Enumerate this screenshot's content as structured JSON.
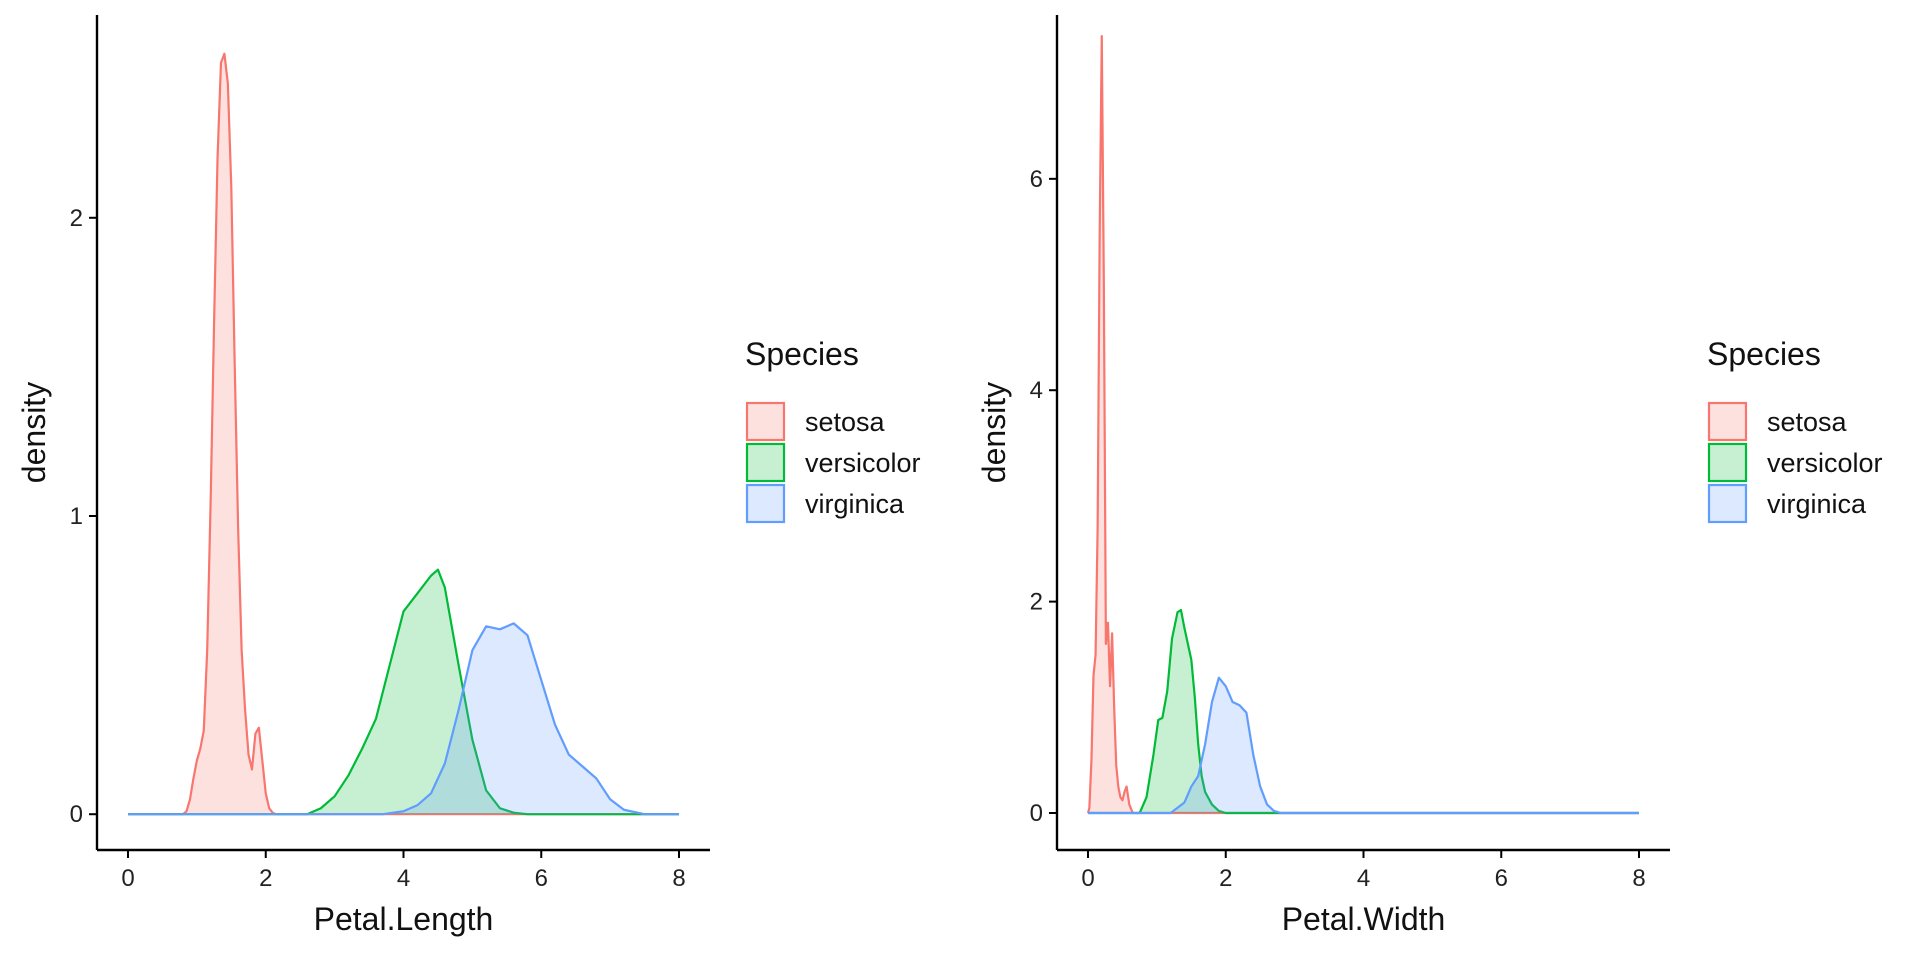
{
  "colors": {
    "setosa": "#F8766D",
    "versicolor": "#00BA38",
    "virginica": "#619CFF"
  },
  "chart_data": [
    {
      "type": "area",
      "xlabel": "Petal.Length",
      "ylabel": "density",
      "xlim": [
        -0.45,
        8.45
      ],
      "ylim": [
        -0.12,
        2.68
      ],
      "xticks": [
        0,
        2,
        4,
        6,
        8
      ],
      "xtick_labels": [
        "0",
        "2",
        "4",
        "6",
        "8"
      ],
      "yticks": [
        0,
        1,
        2
      ],
      "ytick_labels": [
        "0",
        "1",
        "2"
      ],
      "grid": false,
      "legend": {
        "title": "Species",
        "position": "right",
        "entries": [
          "setosa",
          "versicolor",
          "virginica"
        ]
      },
      "series": [
        {
          "name": "setosa",
          "color_key": "setosa",
          "x": [
            0,
            0.8,
            0.85,
            0.9,
            0.95,
            1.0,
            1.05,
            1.1,
            1.15,
            1.2,
            1.25,
            1.3,
            1.35,
            1.4,
            1.45,
            1.5,
            1.55,
            1.6,
            1.65,
            1.7,
            1.75,
            1.8,
            1.85,
            1.9,
            1.95,
            2.0,
            2.05,
            2.1,
            2.15,
            8
          ],
          "y": [
            0,
            0,
            0.01,
            0.05,
            0.12,
            0.18,
            0.22,
            0.28,
            0.55,
            1.05,
            1.65,
            2.2,
            2.52,
            2.55,
            2.45,
            2.1,
            1.5,
            0.95,
            0.55,
            0.35,
            0.2,
            0.15,
            0.27,
            0.29,
            0.18,
            0.07,
            0.02,
            0.005,
            0,
            0
          ]
        },
        {
          "name": "versicolor",
          "color_key": "versicolor",
          "x": [
            0,
            2.6,
            2.8,
            3.0,
            3.2,
            3.4,
            3.6,
            3.8,
            4.0,
            4.2,
            4.4,
            4.5,
            4.6,
            4.8,
            5.0,
            5.2,
            5.4,
            5.6,
            5.8,
            8
          ],
          "y": [
            0,
            0,
            0.02,
            0.06,
            0.13,
            0.22,
            0.32,
            0.5,
            0.68,
            0.74,
            0.8,
            0.82,
            0.76,
            0.5,
            0.25,
            0.08,
            0.02,
            0.005,
            0,
            0
          ]
        },
        {
          "name": "virginica",
          "color_key": "virginica",
          "x": [
            0,
            3.7,
            4.0,
            4.2,
            4.4,
            4.6,
            4.8,
            5.0,
            5.2,
            5.4,
            5.6,
            5.8,
            6.0,
            6.2,
            6.4,
            6.6,
            6.8,
            7.0,
            7.2,
            7.5,
            8
          ],
          "y": [
            0,
            0,
            0.01,
            0.03,
            0.07,
            0.17,
            0.35,
            0.55,
            0.63,
            0.62,
            0.64,
            0.6,
            0.45,
            0.3,
            0.2,
            0.16,
            0.12,
            0.05,
            0.015,
            0,
            0
          ]
        }
      ]
    },
    {
      "type": "area",
      "xlabel": "Petal.Width",
      "ylabel": "density",
      "xlim": [
        -0.45,
        8.45
      ],
      "ylim": [
        -0.35,
        7.55
      ],
      "xticks": [
        0,
        2,
        4,
        6,
        8
      ],
      "xtick_labels": [
        "0",
        "2",
        "4",
        "6",
        "8"
      ],
      "yticks": [
        0,
        2,
        4,
        6
      ],
      "ytick_labels": [
        "0",
        "2",
        "4",
        "6"
      ],
      "grid": false,
      "legend": {
        "title": "Species",
        "position": "right",
        "entries": [
          "setosa",
          "versicolor",
          "virginica"
        ]
      },
      "series": [
        {
          "name": "setosa",
          "color_key": "setosa",
          "x": [
            0,
            0.02,
            0.05,
            0.08,
            0.11,
            0.14,
            0.17,
            0.2,
            0.23,
            0.26,
            0.29,
            0.32,
            0.35,
            0.38,
            0.41,
            0.44,
            0.47,
            0.5,
            0.53,
            0.56,
            0.6,
            0.65,
            8
          ],
          "y": [
            0,
            0.05,
            0.5,
            1.3,
            1.5,
            2.7,
            5.5,
            7.35,
            5.0,
            1.6,
            1.8,
            1.2,
            1.7,
            1.0,
            0.45,
            0.25,
            0.15,
            0.12,
            0.2,
            0.25,
            0.08,
            0,
            0
          ]
        },
        {
          "name": "versicolor",
          "color_key": "versicolor",
          "x": [
            0,
            0.75,
            0.85,
            0.95,
            1.02,
            1.08,
            1.15,
            1.22,
            1.3,
            1.35,
            1.4,
            1.45,
            1.5,
            1.55,
            1.6,
            1.65,
            1.7,
            1.8,
            1.9,
            2.0,
            8
          ],
          "y": [
            0,
            0,
            0.15,
            0.55,
            0.88,
            0.9,
            1.15,
            1.65,
            1.9,
            1.92,
            1.75,
            1.6,
            1.45,
            1.1,
            0.65,
            0.35,
            0.2,
            0.08,
            0.02,
            0,
            0
          ]
        },
        {
          "name": "virginica",
          "color_key": "virginica",
          "x": [
            0,
            1.2,
            1.4,
            1.5,
            1.6,
            1.7,
            1.8,
            1.9,
            2.0,
            2.1,
            2.2,
            2.3,
            2.4,
            2.5,
            2.6,
            2.7,
            2.8,
            8
          ],
          "y": [
            0,
            0,
            0.1,
            0.25,
            0.35,
            0.65,
            1.05,
            1.28,
            1.2,
            1.05,
            1.02,
            0.95,
            0.55,
            0.25,
            0.08,
            0.02,
            0,
            0
          ]
        }
      ]
    }
  ]
}
